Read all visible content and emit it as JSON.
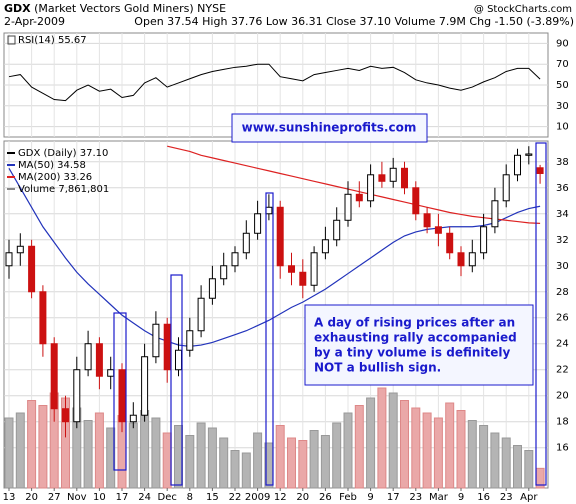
{
  "header": {
    "symbol": "GDX",
    "name": "(Market Vectors Gold Miners) NYSE",
    "date": "2-Apr-2009",
    "quote": "Open 37.54 High 37.76 Low 36.31 Close 37.10 Volume 7.9M Chg -1.50 (-3.89%)",
    "source": "@ StockCharts.com"
  },
  "chart_data": [
    {
      "type": "line",
      "title": "RSI(14) 55.67",
      "color": "#000000",
      "values": [
        58,
        60,
        48,
        42,
        36,
        35,
        45,
        50,
        44,
        46,
        38,
        40,
        52,
        57,
        48,
        52,
        56,
        60,
        63,
        65,
        67,
        68,
        70,
        70,
        58,
        56,
        54,
        60,
        62,
        64,
        66,
        64,
        68,
        66,
        67,
        62,
        55,
        52,
        50,
        47,
        45,
        48,
        53,
        57,
        63,
        66,
        66,
        55.67
      ],
      "ylim": [
        0,
        100
      ],
      "yticks": [
        10,
        30,
        50,
        70,
        90
      ],
      "grid": true
    },
    {
      "type": "candlestick",
      "price_name": "GDX (Daily) 37.10",
      "categories": [
        "13",
        null,
        "20",
        null,
        "27",
        null,
        "Nov",
        null,
        "10",
        null,
        "17",
        null,
        "24",
        null,
        "Dec",
        null,
        "8",
        null,
        "15",
        null,
        "22",
        null,
        "2009",
        null,
        "12",
        null,
        "20",
        null,
        "26",
        null,
        "Feb",
        null,
        "9",
        null,
        "17",
        null,
        "23",
        null,
        "Mar",
        null,
        "9",
        null,
        "16",
        null,
        "23",
        null,
        "Apr",
        null
      ],
      "open": [
        30,
        31,
        31.5,
        28,
        24,
        19,
        18,
        22,
        24,
        21.5,
        22,
        18,
        18.5,
        23,
        25.5,
        22,
        23.5,
        25,
        27.5,
        29,
        30,
        31,
        32.5,
        34,
        34.5,
        30,
        29.5,
        28.5,
        31,
        32,
        33.5,
        35.5,
        35,
        37,
        36.5,
        37.5,
        36,
        34,
        33,
        32.5,
        31,
        30,
        31,
        33,
        35,
        37,
        38.5,
        37.54
      ],
      "high": [
        32,
        32.5,
        32,
        28.5,
        24.5,
        20,
        23,
        25,
        24.5,
        23,
        22.5,
        19.5,
        24,
        26.5,
        26,
        24.5,
        26,
        28.5,
        30,
        31,
        31.5,
        33.5,
        35,
        35.5,
        35,
        31,
        30.5,
        31.5,
        33,
        34.5,
        36.5,
        36.5,
        37.8,
        38,
        38.3,
        38,
        36.5,
        34.5,
        34,
        33,
        31.5,
        32,
        34,
        36,
        37.8,
        39,
        39.2,
        37.76
      ],
      "low": [
        29,
        30,
        27.5,
        23,
        18,
        16.8,
        17.5,
        21.5,
        20.5,
        20.5,
        17.2,
        17.5,
        18,
        22.5,
        21,
        21.5,
        23,
        24.5,
        27,
        28.5,
        29.5,
        30.5,
        32,
        33.5,
        29,
        28.5,
        27.5,
        28,
        30.5,
        31.5,
        33,
        34.5,
        34.5,
        36,
        36,
        35.5,
        33.5,
        32.5,
        31.5,
        30.5,
        29.2,
        29.5,
        30.5,
        32.5,
        34.5,
        36.5,
        37.8,
        36.31
      ],
      "close": [
        31,
        31.5,
        28,
        24,
        19,
        18,
        22,
        24,
        21.5,
        22,
        18,
        18.5,
        23,
        25.5,
        22,
        23.5,
        25,
        27.5,
        29,
        30,
        31,
        32.5,
        34,
        34.5,
        30,
        29.5,
        28.5,
        31,
        32,
        33.5,
        35.5,
        35,
        37,
        36.5,
        37.5,
        36,
        34,
        33,
        32.5,
        31,
        30,
        31,
        33,
        35,
        37,
        38.5,
        38.6,
        37.1
      ],
      "color_up": "#000000",
      "color_down": "#cc1111",
      "series": [
        {
          "name": "MA(50) 34.58",
          "color": "#2233bb",
          "values": [
            37.5,
            36,
            34.5,
            33,
            31.8,
            30.6,
            29.5,
            28.6,
            27.8,
            27,
            26.2,
            25.6,
            25,
            24.5,
            24.2,
            23.9,
            23.8,
            23.9,
            24.1,
            24.4,
            24.7,
            25,
            25.4,
            25.8,
            26.3,
            26.8,
            27.2,
            27.7,
            28.2,
            28.8,
            29.4,
            30,
            30.6,
            31.2,
            31.8,
            32.3,
            32.6,
            32.8,
            32.9,
            33,
            33,
            33,
            33.1,
            33.3,
            33.7,
            34.1,
            34.4,
            34.58
          ]
        },
        {
          "name": "MA(200) 33.26",
          "color": "#dd2222",
          "values": [
            null,
            null,
            null,
            null,
            null,
            null,
            null,
            null,
            null,
            null,
            null,
            null,
            null,
            null,
            39.2,
            39,
            38.8,
            38.5,
            38.3,
            38.1,
            37.9,
            37.7,
            37.5,
            37.3,
            37.1,
            36.9,
            36.7,
            36.5,
            36.3,
            36.1,
            35.9,
            35.7,
            35.5,
            35.3,
            35.1,
            34.9,
            34.7,
            34.5,
            34.3,
            34.1,
            33.95,
            33.8,
            33.7,
            33.6,
            33.5,
            33.4,
            33.3,
            33.26
          ]
        }
      ],
      "volume": {
        "name": "Volume 7,861,801",
        "color_up": "#b4b4b4",
        "color_down": "#eaa8a8",
        "values": [
          28000000,
          30000000,
          35000000,
          33000000,
          38000000,
          36000000,
          32000000,
          27000000,
          30000000,
          24000000,
          29000000,
          26000000,
          31000000,
          28000000,
          22000000,
          25000000,
          21000000,
          26000000,
          24000000,
          20000000,
          15000000,
          14000000,
          22000000,
          18000000,
          25000000,
          20000000,
          19000000,
          23000000,
          21000000,
          26000000,
          30000000,
          33000000,
          36000000,
          40000000,
          38000000,
          35000000,
          32000000,
          30000000,
          28000000,
          34000000,
          31000000,
          27000000,
          25000000,
          22000000,
          20000000,
          17000000,
          15000000,
          7861801
        ]
      },
      "ylim": [
        12.9,
        39.6
      ],
      "yticks": [
        16,
        18,
        20,
        22,
        24,
        26,
        28,
        30,
        32,
        34,
        36,
        38
      ],
      "grid": true,
      "annotations": [
        "www.sunshineprofits.com",
        "A day of rising prices after an",
        "exhausting rally accompanied",
        "by a tiny volume is definitely",
        "NOT a bullish sign."
      ]
    }
  ]
}
